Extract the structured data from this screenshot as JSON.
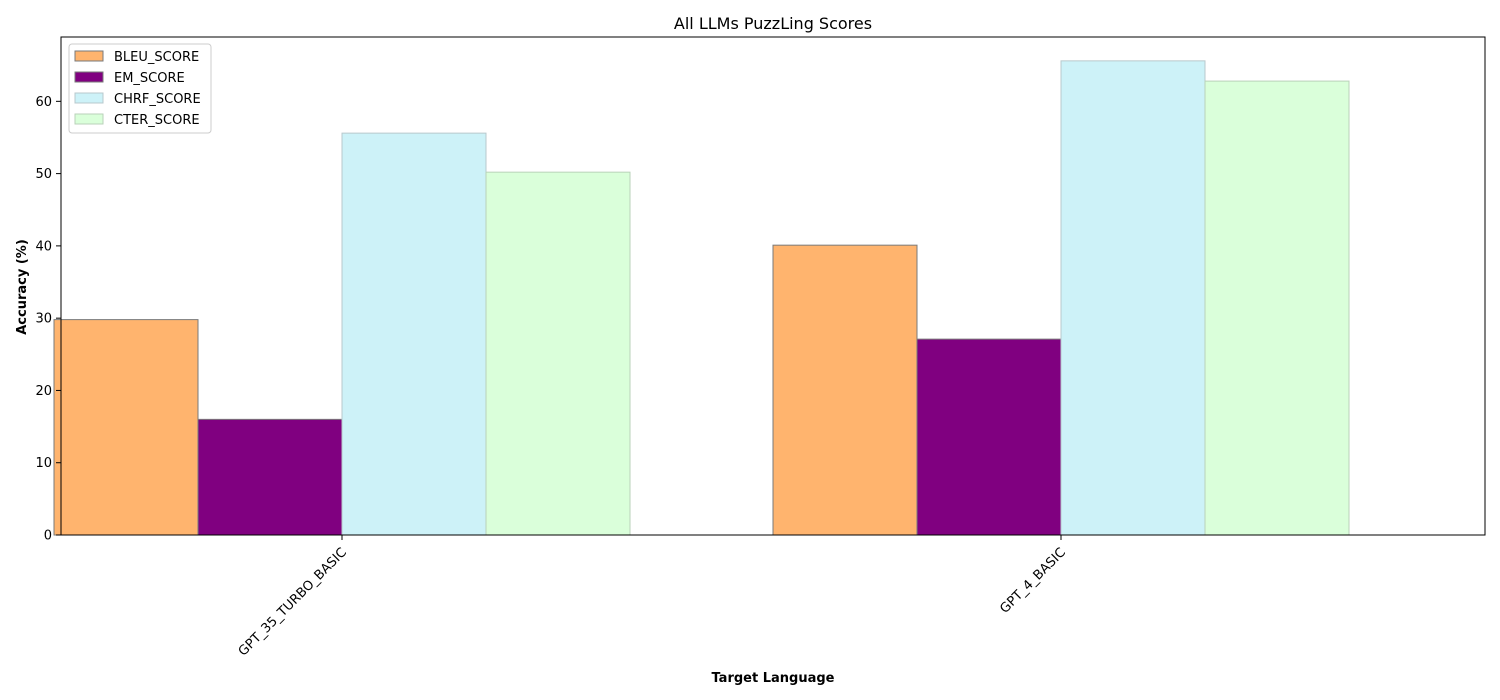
{
  "chart_data": {
    "type": "bar",
    "title": "All LLMs PuzzLing Scores",
    "xlabel": "Target Language",
    "ylabel": "Accuracy (%)",
    "categories": [
      "GPT_35_TURBO_BASIC",
      "GPT_4_BASIC"
    ],
    "series": [
      {
        "name": "BLEU_SCORE",
        "values": [
          29.8,
          40.1
        ],
        "color": "#FFB46E",
        "edge": "#7a7a7a"
      },
      {
        "name": "EM_SCORE",
        "values": [
          16.0,
          27.1
        ],
        "color": "#800080",
        "edge": "#7a7a7a"
      },
      {
        "name": "CHRF_SCORE",
        "values": [
          55.6,
          65.6
        ],
        "color": "#CDF2F8",
        "edge": "#b8c8cc"
      },
      {
        "name": "CTER_SCORE",
        "values": [
          50.2,
          62.8
        ],
        "color": "#DAFFDA",
        "edge": "#b9d2b9"
      }
    ],
    "ylim": [
      0,
      68.9
    ],
    "yticks": [
      0,
      10,
      20,
      30,
      40,
      50,
      60
    ],
    "legend_position": "top-left",
    "grid": false
  }
}
